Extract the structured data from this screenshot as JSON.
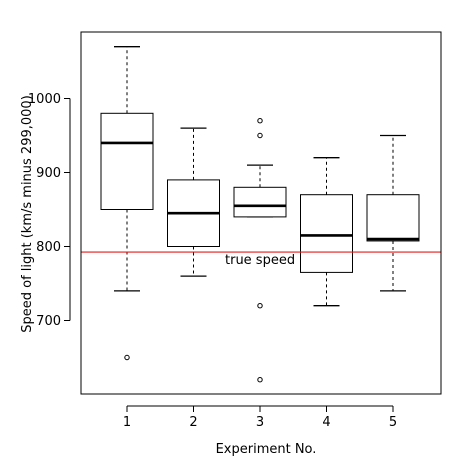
{
  "chart_data": {
    "type": "boxplot",
    "title": "",
    "xlabel": "Experiment No.",
    "ylabel": "Speed of light (km/s minus 299,000)",
    "categories": [
      "1",
      "2",
      "3",
      "4",
      "5"
    ],
    "ylim": [
      590,
      1100
    ],
    "y_ticks": [
      "700",
      "800",
      "900",
      "1000"
    ],
    "grid": false,
    "boxes": [
      {
        "category": "1",
        "whisker_low": 740,
        "q1": 850,
        "median": 940,
        "q3": 980,
        "whisker_high": 1070,
        "outliers": [
          650
        ]
      },
      {
        "category": "2",
        "whisker_low": 760,
        "q1": 800,
        "median": 845,
        "q3": 890,
        "whisker_high": 960,
        "outliers": []
      },
      {
        "category": "3",
        "whisker_low": 840,
        "q1": 840,
        "median": 855,
        "q3": 880,
        "whisker_high": 910,
        "outliers": [
          970,
          950,
          720,
          620
        ]
      },
      {
        "category": "4",
        "whisker_low": 720,
        "q1": 765,
        "median": 815,
        "q3": 870,
        "whisker_high": 920,
        "outliers": []
      },
      {
        "category": "5",
        "whisker_low": 740,
        "q1": 807.5,
        "median": 810,
        "q3": 870,
        "whisker_high": 950,
        "outliers": []
      }
    ],
    "reference_line": {
      "value": 792.458,
      "label": "true speed",
      "color": "#e41a1c"
    }
  }
}
